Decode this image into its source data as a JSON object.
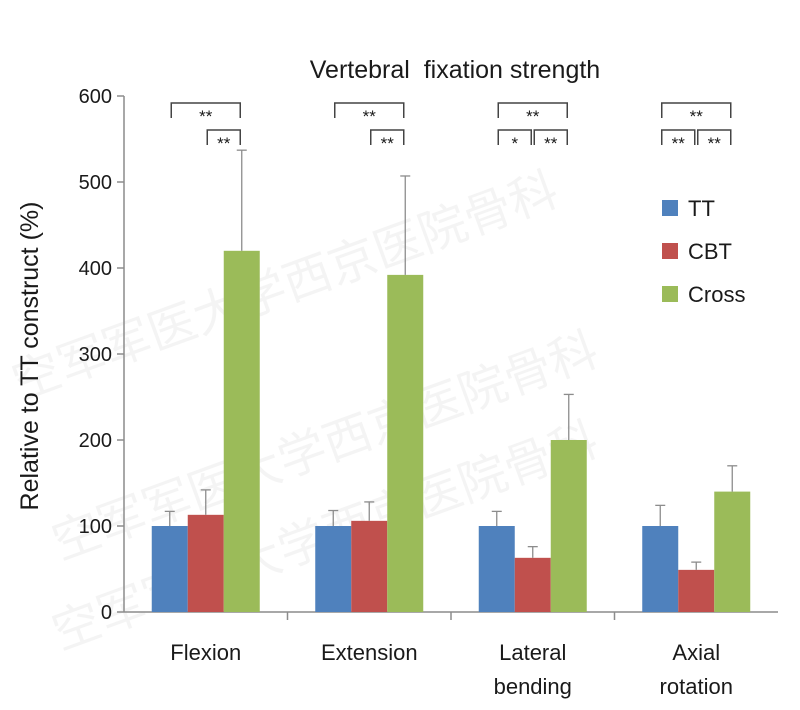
{
  "watermark": [
    "空军军医大学西京医院骨科",
    "空军军医大学西京医院骨科",
    "空军军医大学西京医院骨科"
  ],
  "chart_data": {
    "type": "bar",
    "title": "Vertebral  fixation strength",
    "ylabel": "Relative to TT construct (%)",
    "xlabel": "",
    "ylim": [
      0,
      600
    ],
    "yticks": [
      0,
      100,
      200,
      300,
      400,
      500,
      600
    ],
    "ytick_labels": [
      "0",
      "100",
      "200",
      "300",
      "400",
      "500",
      "600"
    ],
    "categories": [
      [
        "Flexion"
      ],
      [
        "Extension"
      ],
      [
        "Lateral",
        "bending"
      ],
      [
        "Axial",
        "rotation"
      ]
    ],
    "series": [
      {
        "name": "TT",
        "color": "#4f81bd",
        "values": [
          100,
          100,
          100,
          100
        ],
        "errors": [
          17,
          18,
          17,
          24
        ]
      },
      {
        "name": "CBT",
        "color": "#c0504d",
        "values": [
          113,
          106,
          63,
          49
        ],
        "errors": [
          29,
          22,
          13,
          9
        ]
      },
      {
        "name": "Cross",
        "color": "#9bbb59",
        "values": [
          420,
          392,
          200,
          140
        ],
        "errors": [
          117,
          115,
          53,
          30
        ]
      }
    ],
    "legend_position": "right",
    "grid": false,
    "significance": [
      {
        "group": 0,
        "from": "TT",
        "to": "Cross",
        "label": "**",
        "level": 1
      },
      {
        "group": 0,
        "from": "CBT",
        "to": "Cross",
        "label": "**",
        "level": 2
      },
      {
        "group": 1,
        "from": "TT",
        "to": "Cross",
        "label": "**",
        "level": 1
      },
      {
        "group": 1,
        "from": "CBT",
        "to": "Cross",
        "label": "**",
        "level": 2
      },
      {
        "group": 2,
        "from": "TT",
        "to": "Cross",
        "label": "**",
        "level": 1
      },
      {
        "group": 2,
        "from": "TT",
        "to": "CBT",
        "label": "*",
        "level": 2
      },
      {
        "group": 2,
        "from": "CBT",
        "to": "Cross",
        "label": "**",
        "level": 2
      },
      {
        "group": 3,
        "from": "TT",
        "to": "Cross",
        "label": "**",
        "level": 1
      },
      {
        "group": 3,
        "from": "TT",
        "to": "CBT",
        "label": "**",
        "level": 2
      },
      {
        "group": 3,
        "from": "CBT",
        "to": "Cross",
        "label": "**",
        "level": 2
      }
    ]
  }
}
